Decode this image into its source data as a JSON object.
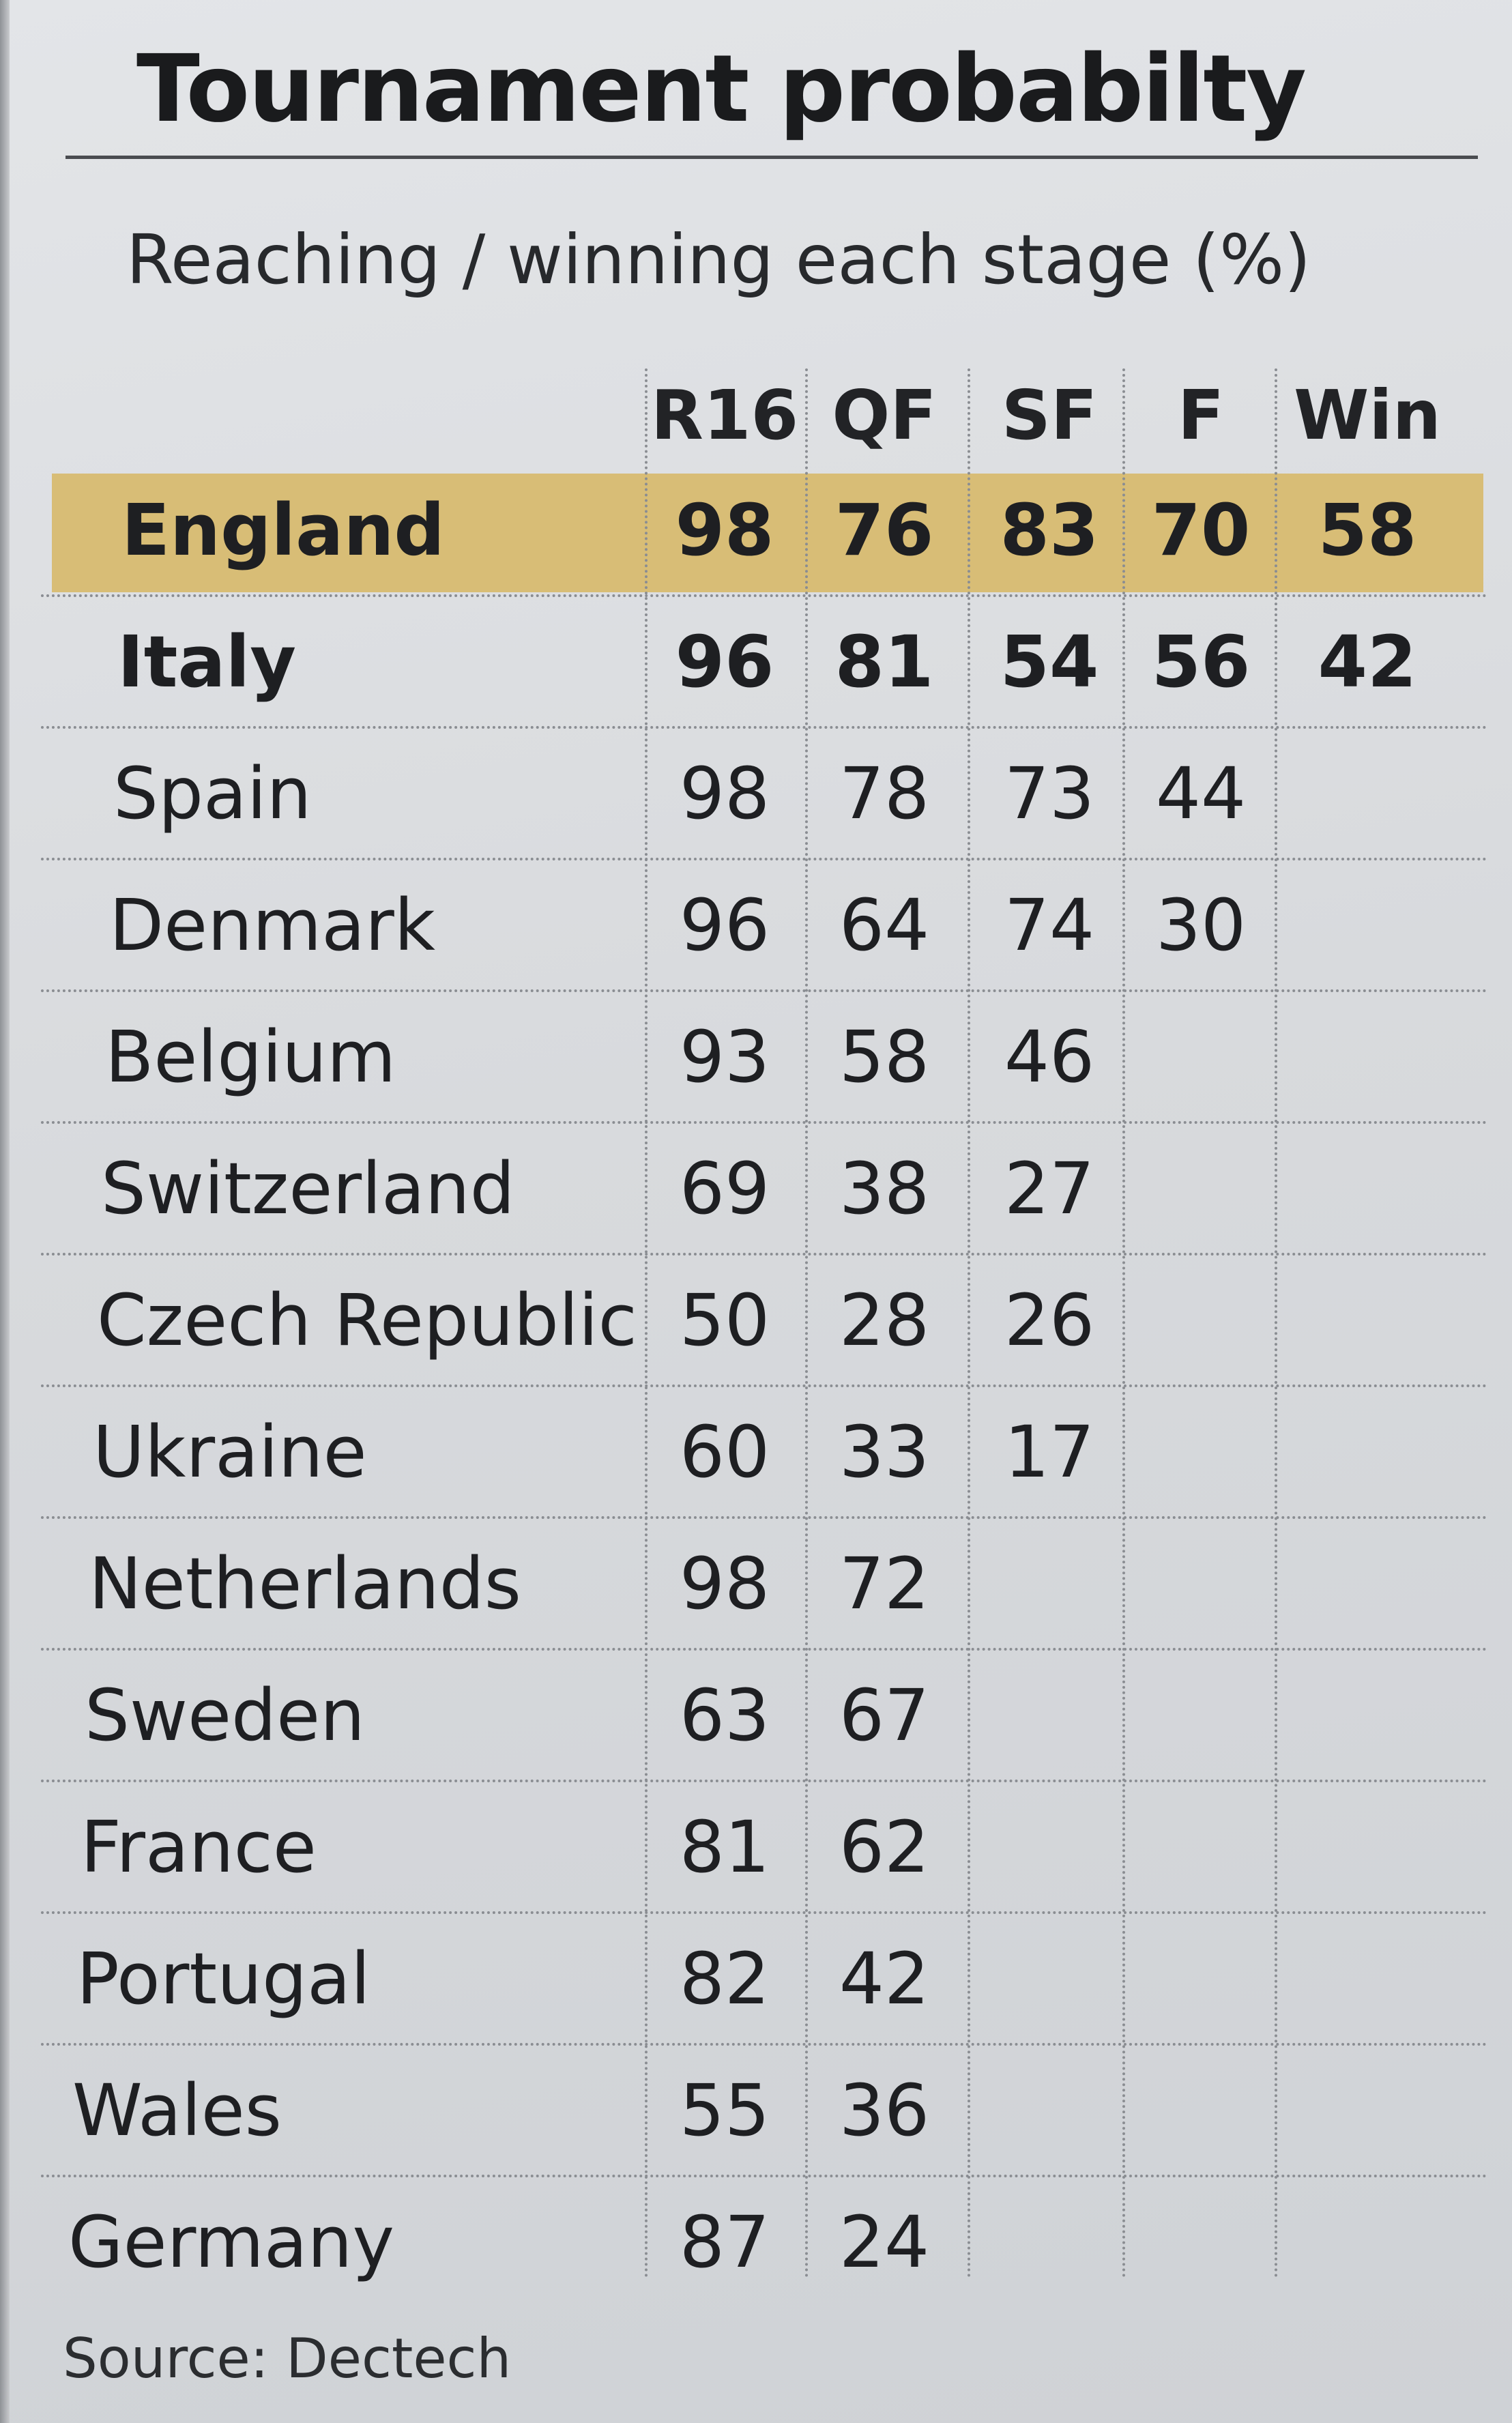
{
  "chart_data": {
    "type": "table",
    "title": "Tournament probabilty",
    "subtitle": "Reaching / winning each stage (%)",
    "columns": [
      "R16",
      "QF",
      "SF",
      "F",
      "Win"
    ],
    "rows": [
      {
        "country": "England",
        "values": [
          "98",
          "76",
          "83",
          "70",
          "58"
        ],
        "highlight": true,
        "bold": true
      },
      {
        "country": "Italy",
        "values": [
          "96",
          "81",
          "54",
          "56",
          "42"
        ],
        "highlight": false,
        "bold": true
      },
      {
        "country": "Spain",
        "values": [
          "98",
          "78",
          "73",
          "44",
          ""
        ],
        "highlight": false,
        "bold": false
      },
      {
        "country": "Denmark",
        "values": [
          "96",
          "64",
          "74",
          "30",
          ""
        ],
        "highlight": false,
        "bold": false
      },
      {
        "country": "Belgium",
        "values": [
          "93",
          "58",
          "46",
          "",
          ""
        ],
        "highlight": false,
        "bold": false
      },
      {
        "country": "Switzerland",
        "values": [
          "69",
          "38",
          "27",
          "",
          ""
        ],
        "highlight": false,
        "bold": false
      },
      {
        "country": "Czech Republic",
        "values": [
          "50",
          "28",
          "26",
          "",
          ""
        ],
        "highlight": false,
        "bold": false
      },
      {
        "country": "Ukraine",
        "values": [
          "60",
          "33",
          "17",
          "",
          ""
        ],
        "highlight": false,
        "bold": false
      },
      {
        "country": "Netherlands",
        "values": [
          "98",
          "72",
          "",
          "",
          ""
        ],
        "highlight": false,
        "bold": false
      },
      {
        "country": "Sweden",
        "values": [
          "63",
          "67",
          "",
          "",
          ""
        ],
        "highlight": false,
        "bold": false
      },
      {
        "country": "France",
        "values": [
          "81",
          "62",
          "",
          "",
          ""
        ],
        "highlight": false,
        "bold": false
      },
      {
        "country": "Portugal",
        "values": [
          "82",
          "42",
          "",
          "",
          ""
        ],
        "highlight": false,
        "bold": false
      },
      {
        "country": "Wales",
        "values": [
          "55",
          "36",
          "",
          "",
          ""
        ],
        "highlight": false,
        "bold": false
      },
      {
        "country": "Germany",
        "values": [
          "87",
          "24",
          "",
          "",
          ""
        ],
        "highlight": false,
        "bold": false
      }
    ],
    "source": "Source: Dectech",
    "highlight_color": "#d8bd76"
  }
}
